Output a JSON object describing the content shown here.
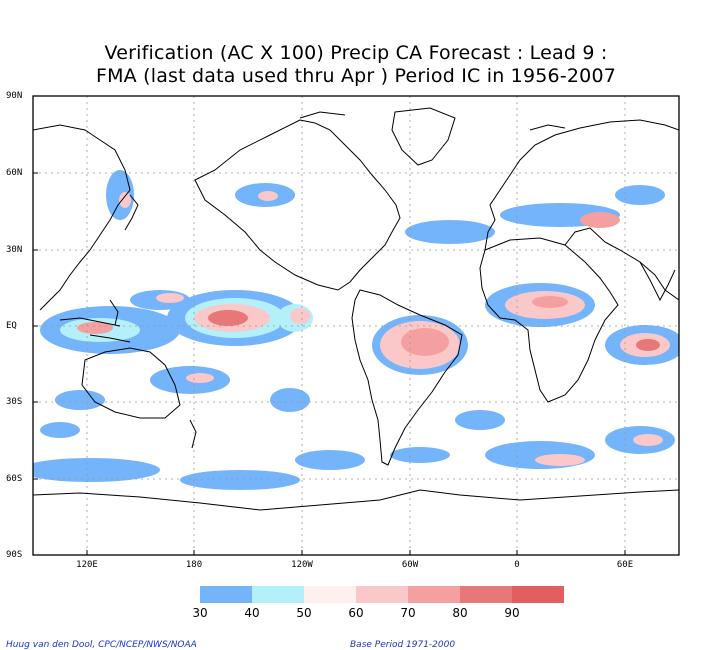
{
  "title": {
    "line1": "Verification (AC X 100) Precip CA Forecast : Lead 9 :",
    "line2": "FMA (last data used thru Apr ) Period IC in 1956-2007"
  },
  "y_axis_labels": [
    "90N",
    "60N",
    "30N",
    "EQ",
    "30S",
    "60S",
    "90S"
  ],
  "x_axis_labels": [
    "120E",
    "180",
    "120W",
    "60W",
    "0",
    "60E"
  ],
  "colorbar": {
    "ticks": [
      "30",
      "40",
      "50",
      "60",
      "70",
      "80",
      "90"
    ],
    "colors": [
      "#73b4fa",
      "#b4f0fa",
      "#fff0f0",
      "#fac8c8",
      "#f5a0a0",
      "#e67878",
      "#e15f5f"
    ]
  },
  "footer": {
    "left": "Huug van den Dool, CPC/NCEP/NWS/NOAA",
    "right": "Base Period 1971-2000"
  }
}
